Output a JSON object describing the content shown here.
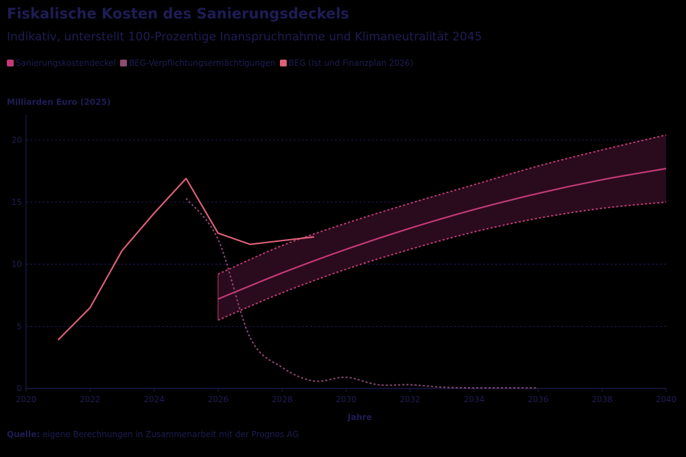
{
  "title": "Fiskalische Kosten des Sanierungsdeckels",
  "subtitle": "Indikativ, unterstellt 100-Prozentige Inanspruchnahme und Klimaneutralität 2045",
  "source": {
    "label": "Quelle:",
    "text": " eigene Berechnungen in Zusammenarbeit mit der Prognos AG"
  },
  "colors": {
    "text": "#1f1c55",
    "axis": "#1f1c55",
    "grid": "#1f1c55",
    "sanierung": "#c43a78",
    "beg_verpf": "#8e4a73",
    "beg_ist": "#e0607a",
    "band": "#2a0b1d"
  },
  "chart_data": {
    "type": "line",
    "title": "Fiskalische Kosten des Sanierungsdeckels",
    "xlabel": "Jahre",
    "ylabel": "Milliarden Euro (2025)",
    "xlim": [
      2020,
      2040
    ],
    "ylim": [
      0,
      22
    ],
    "xticks": [
      2020,
      2022,
      2024,
      2026,
      2028,
      2030,
      2032,
      2034,
      2036,
      2038,
      2040
    ],
    "yticks": [
      0,
      5,
      10,
      15,
      20
    ],
    "grid": "horizontal-dashed",
    "legend_position": "top-left",
    "series": [
      {
        "name": "Sanierungskostendeckel",
        "style": "solid",
        "x": [
          2026,
          2028,
          2030,
          2032,
          2034,
          2036,
          2038,
          2040
        ],
        "values": [
          7.2,
          9.3,
          11.2,
          12.9,
          14.4,
          15.7,
          16.8,
          17.7
        ],
        "band_upper": [
          9.2,
          11.5,
          13.3,
          14.9,
          16.4,
          17.9,
          19.2,
          20.4
        ],
        "band_lower": [
          5.5,
          7.7,
          9.6,
          11.2,
          12.6,
          13.7,
          14.5,
          15.0
        ]
      },
      {
        "name": "BEG-Verpflichtungsermächtigungen",
        "style": "dotted",
        "x": [
          2025,
          2026,
          2027,
          2028,
          2029,
          2030,
          2031,
          2032,
          2033,
          2034,
          2035,
          2036
        ],
        "values": [
          15.3,
          12.0,
          4.1,
          1.7,
          0.6,
          0.9,
          0.3,
          0.3,
          0.1,
          0.05,
          0.05,
          0.05
        ]
      },
      {
        "name": "BEG (Ist und Finanzplan 2026)",
        "style": "solid",
        "x": [
          2021,
          2022,
          2023,
          2024,
          2025,
          2026,
          2027,
          2028,
          2029
        ],
        "values": [
          3.9,
          6.5,
          11.1,
          14.1,
          16.9,
          12.5,
          11.6,
          11.9,
          12.2
        ]
      }
    ]
  }
}
